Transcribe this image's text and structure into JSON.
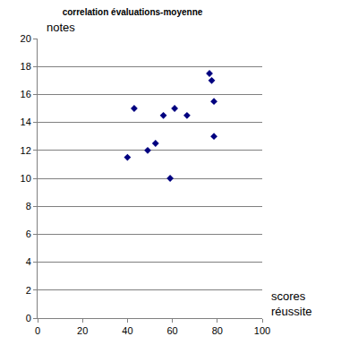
{
  "chart_data": {
    "type": "scatter",
    "title": "correlation évaluations-moyenne",
    "x_label": "scores réussite",
    "y_label": "notes",
    "x": [
      40,
      43,
      49,
      52.5,
      56,
      59,
      61,
      66.5,
      76.5,
      77.5,
      78.5,
      78.5
    ],
    "values": [
      11.5,
      15,
      12,
      12.5,
      14.5,
      10,
      15,
      14.5,
      17.5,
      17,
      15.5,
      13
    ],
    "color": "#000080",
    "marker": "diamond",
    "xlim": [
      0,
      100
    ],
    "xticks": [
      0,
      20,
      40,
      60,
      80,
      100
    ],
    "ylim": [
      0,
      20
    ],
    "yticks": [
      0,
      2,
      4,
      6,
      8,
      10,
      12,
      14,
      16,
      18,
      20
    ],
    "grid": true
  }
}
